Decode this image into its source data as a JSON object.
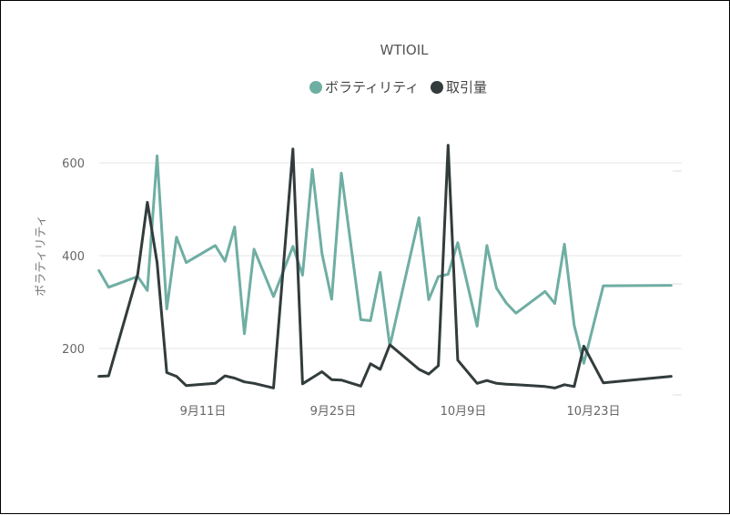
{
  "chart_data": {
    "type": "line",
    "title": "WTIOIL",
    "xlabel": "",
    "ylabel": "ボラティリティ",
    "x_tick_labels": [
      "9月11日",
      "9月25日",
      "10月9日",
      "10月23日"
    ],
    "y_ticks": [
      200,
      400,
      600
    ],
    "ylim": [
      100,
      670
    ],
    "xlim": [
      0,
      61
    ],
    "grid": true,
    "legend_position": "top",
    "x": [
      1,
      2,
      5,
      6,
      7,
      8,
      9,
      10,
      13,
      14,
      15,
      16,
      17,
      19,
      21,
      22,
      23,
      24,
      25,
      26,
      28,
      29,
      30,
      31,
      34,
      35,
      36,
      37,
      38,
      40,
      41,
      42,
      43,
      44,
      47,
      48,
      49,
      50,
      51,
      53,
      54,
      55,
      56,
      57,
      58,
      59,
      60
    ],
    "series": [
      {
        "name": "ボラティリティ",
        "color": "#6FAEA3",
        "values": [
          368,
          332,
          355,
          325,
          615,
          285,
          440,
          385,
          422,
          388,
          462,
          232,
          414,
          312,
          420,
          358,
          586,
          405,
          306,
          578,
          262,
          260,
          364,
          205,
          482,
          305,
          355,
          360,
          428,
          248,
          422,
          330,
          298,
          276,
          323,
          297,
          425,
          250,
          168,
          335,
          336,
          336,
          336,
          336,
          336,
          336,
          336
        ]
      },
      {
        "name": "取引量",
        "color": "#333C3C",
        "values": [
          140,
          141,
          360,
          515,
          385,
          148,
          140,
          120,
          125,
          141,
          136,
          128,
          125,
          115,
          630,
          124,
          137,
          150,
          133,
          132,
          119,
          167,
          155,
          208,
          155,
          145,
          163,
          638,
          175,
          125,
          131,
          125,
          123,
          122,
          118,
          115,
          122,
          118,
          205,
          126,
          140,
          140,
          140,
          140,
          140,
          140,
          140
        ]
      }
    ]
  }
}
